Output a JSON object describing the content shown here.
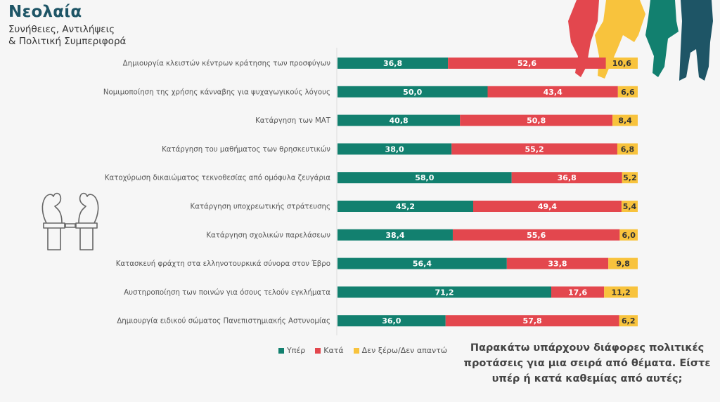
{
  "header": {
    "title": "Νεολαία",
    "subtitle_line1": "Συνήθειες, Αντιλήψεις",
    "subtitle_line2": "& Πολιτική Συμπεριφορά"
  },
  "question": "Παρακάτω υπάρχουν διάφορες πολιτικές προτάσεις για μια σειρά από θέματα. Είστε υπέρ ή κατά καθεμίας από αυτές;",
  "icons": {
    "left": "handcuffed-hands-icon",
    "top_right": "youth-silhouettes-icon"
  },
  "colors": {
    "for": "#12806f",
    "against": "#e3474e",
    "dk": "#f8c33d",
    "title": "#1e5566",
    "people": [
      "#e3474e",
      "#f8c33d",
      "#12806f",
      "#1e5566"
    ]
  },
  "chart_data": {
    "type": "bar",
    "orientation": "horizontal",
    "stacked": true,
    "title": "",
    "xlabel": "",
    "ylabel": "",
    "xlim": [
      0,
      100
    ],
    "grid": false,
    "legend_position": "bottom",
    "categories": [
      "Δημιουργία κλειστών κέντρων κράτησης των προσφύγων",
      "Νομιμοποίηση της χρήσης κάνναβης για ψυχαγωγικούς λόγους",
      "Κατάργηση των ΜΑΤ",
      "Κατάργηση του μαθήματος των θρησκευτικών",
      "Κατοχύρωση δικαιώματος τεκνοθεσίας από ομόφυλα ζευγάρια",
      "Κατάργηση υποχρεωτικής στράτευσης",
      "Κατάργηση σχολικών παρελάσεων",
      "Κατασκευή φράχτη στα ελληνοτουρκικά σύνορα στον Έβρο",
      "Αυστηροποίηση των ποινών για όσους τελούν εγκλήματα",
      "Δημιουργία ειδικού σώματος Πανεπιστημιακής Αστυνομίας"
    ],
    "series": [
      {
        "name": "Υπέρ",
        "color": "#12806f",
        "values": [
          36.8,
          50.0,
          40.8,
          38.0,
          58.0,
          45.2,
          38.4,
          56.4,
          71.2,
          36.0
        ],
        "labels": [
          "36,8",
          "50,0",
          "40,8",
          "38,0",
          "58,0",
          "45,2",
          "38,4",
          "56,4",
          "71,2",
          "36,0"
        ]
      },
      {
        "name": "Κατά",
        "color": "#e3474e",
        "values": [
          52.6,
          43.4,
          50.8,
          55.2,
          36.8,
          49.4,
          55.6,
          33.8,
          17.6,
          57.8
        ],
        "labels": [
          "52,6",
          "43,4",
          "50,8",
          "55,2",
          "36,8",
          "49,4",
          "55,6",
          "33,8",
          "17,6",
          "57,8"
        ]
      },
      {
        "name": "Δεν ξέρω/Δεν απαντώ",
        "color": "#f8c33d",
        "values": [
          10.6,
          6.6,
          8.4,
          6.8,
          5.2,
          5.4,
          6.0,
          9.8,
          11.2,
          6.2
        ],
        "labels": [
          "10,6",
          "6,6",
          "8,4",
          "6,8",
          "5,2",
          "5,4",
          "6,0",
          "9,8",
          "11,2",
          "6,2"
        ]
      }
    ]
  }
}
